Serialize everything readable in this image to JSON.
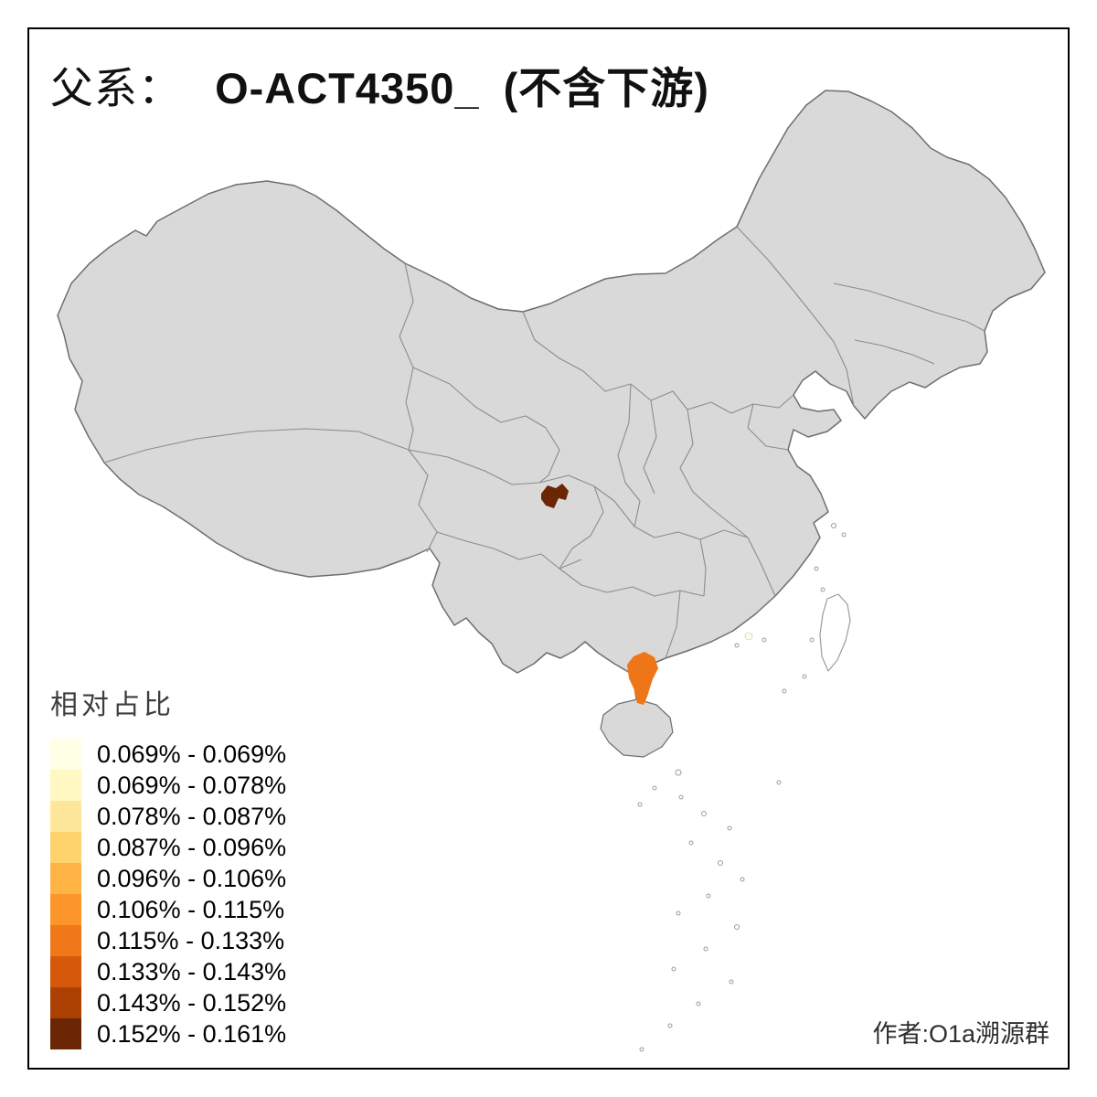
{
  "title": {
    "prefix": "父系：",
    "code": "O-ACT4350_",
    "suffix": "(不含下游)"
  },
  "legend": {
    "title": "相对占比",
    "entries": [
      {
        "range": "0.069% - 0.069%",
        "color": "#FFFFE5"
      },
      {
        "range": "0.069% - 0.078%",
        "color": "#FFF8C2"
      },
      {
        "range": "0.078% - 0.087%",
        "color": "#FEE79A"
      },
      {
        "range": "0.087% - 0.096%",
        "color": "#FED36D"
      },
      {
        "range": "0.096% - 0.106%",
        "color": "#FEB545"
      },
      {
        "range": "0.106% - 0.115%",
        "color": "#FD962A"
      },
      {
        "range": "0.115% - 0.133%",
        "color": "#EF7818"
      },
      {
        "range": "0.133% - 0.143%",
        "color": "#D6590B"
      },
      {
        "range": "0.143% - 0.152%",
        "color": "#AC4104"
      },
      {
        "range": "0.152% - 0.161%",
        "color": "#6B2605"
      }
    ]
  },
  "credit": "作者:O1a溯源群",
  "map": {
    "colors": {
      "land": "#D9D9D9",
      "province_border": "#8C8C8C",
      "country_outline": "#6E6E6E",
      "island_outline": "#9B9B9B",
      "water": "#FFFFFF",
      "frame": "#000000"
    },
    "highlights": [
      {
        "name": "highlight-region-sichuan",
        "color": "#6B2605"
      },
      {
        "name": "highlight-region-leizhou",
        "color": "#EE7618"
      },
      {
        "name": "highlight-region-pearl-delta",
        "color": "#FFFFE5"
      }
    ]
  }
}
